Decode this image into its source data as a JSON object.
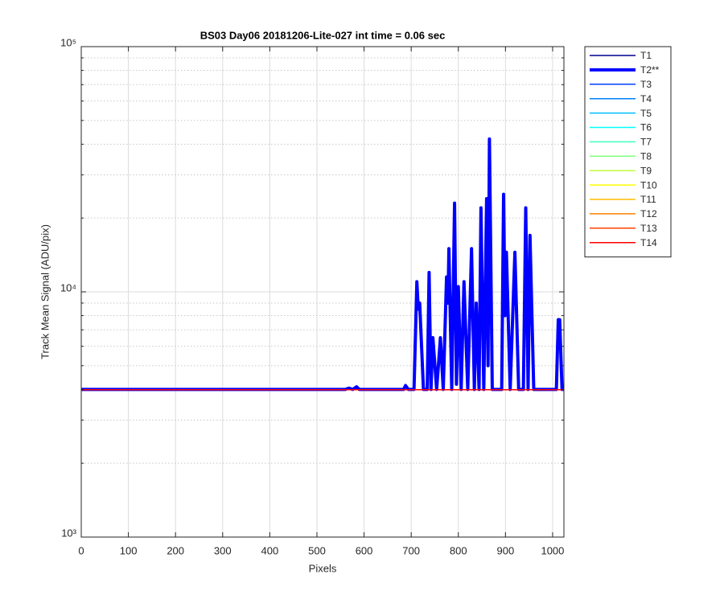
{
  "chart_data": {
    "type": "line",
    "title": "BS03 Day06 20181206-Lite-027 int time = 0.06 sec",
    "xlabel": "Pixels",
    "ylabel": "Track Mean Signal (ADU/pix)",
    "xlim": [
      0,
      1024
    ],
    "xticks": [
      0,
      100,
      200,
      300,
      400,
      500,
      600,
      700,
      800,
      900,
      1000
    ],
    "ylim": [
      1000,
      100000
    ],
    "yscale": "log",
    "yticks": [
      {
        "value": 1000,
        "label": "10³"
      },
      {
        "value": 10000,
        "label": "10⁴"
      },
      {
        "value": 100000,
        "label": "10⁵"
      }
    ],
    "yminorticks": [
      2000,
      3000,
      4000,
      5000,
      6000,
      7000,
      8000,
      9000,
      20000,
      30000,
      40000,
      50000,
      60000,
      70000,
      80000,
      90000
    ],
    "grid": true,
    "legend": "northeastoutside",
    "x": [
      0,
      560,
      568,
      576,
      584,
      590,
      684,
      688,
      694,
      706,
      712,
      715,
      718,
      726,
      734,
      738,
      742,
      746,
      754,
      762,
      768,
      775,
      778,
      780,
      786,
      792,
      796,
      800,
      806,
      812,
      820,
      828,
      834,
      838,
      844,
      848,
      854,
      860,
      863,
      866,
      872,
      892,
      896,
      899,
      902,
      910,
      920,
      928,
      938,
      943,
      948,
      952,
      960,
      1008,
      1012,
      1015,
      1020,
      1024
    ],
    "series": [
      {
        "name": "T1",
        "color": "#00008f",
        "linewidth": 1.5,
        "values": [
          3990,
          3990,
          3990,
          3990,
          3990,
          3990,
          3990,
          3990,
          3990,
          3990,
          3990,
          3990,
          3990,
          3990,
          3990,
          3990,
          3990,
          3990,
          3990,
          3990,
          3990,
          3990,
          3990,
          3990,
          3990,
          3990,
          3990,
          3990,
          3990,
          3990,
          3990,
          3990,
          3990,
          3990,
          3990,
          3990,
          3990,
          3990,
          3990,
          3990,
          3990,
          3990,
          3990,
          3990,
          3990,
          3990,
          3990,
          3990,
          3990,
          3990,
          3990,
          3990,
          3990,
          3990,
          3990,
          3990,
          3990,
          3990
        ]
      },
      {
        "name": "T2**",
        "color": "#0000ff",
        "linewidth": 4,
        "values": [
          4000,
          4000,
          4050,
          4000,
          4100,
          4000,
          4000,
          4150,
          4000,
          4000,
          11000,
          8500,
          9000,
          4000,
          4000,
          12000,
          4000,
          6500,
          4000,
          6500,
          4000,
          11500,
          9000,
          15000,
          4000,
          23000,
          4200,
          10500,
          4000,
          11000,
          4000,
          15000,
          4000,
          9000,
          4000,
          22000,
          4000,
          24000,
          5000,
          42000,
          4000,
          4000,
          25000,
          8000,
          14500,
          4000,
          14500,
          4000,
          4000,
          22000,
          4000,
          17000,
          4000,
          4000,
          7700,
          7700,
          4000,
          4000
        ]
      },
      {
        "name": "T3",
        "color": "#0040ff",
        "linewidth": 1.5,
        "values": [
          3990,
          3990,
          3990,
          3990,
          3990,
          3990,
          3990,
          3990,
          3990,
          3990,
          3990,
          3990,
          3990,
          3990,
          3990,
          3990,
          3990,
          3990,
          3990,
          3990,
          3990,
          3990,
          3990,
          3990,
          3990,
          3990,
          3990,
          3990,
          3990,
          3990,
          3990,
          3990,
          3990,
          3990,
          3990,
          3990,
          3990,
          3990,
          3990,
          3990,
          3990,
          3990,
          3990,
          3990,
          3990,
          3990,
          3990,
          3990,
          3990,
          3990,
          3990,
          3990,
          3990,
          3990,
          3990,
          3990,
          3990,
          3990
        ]
      },
      {
        "name": "T4",
        "color": "#0080ff",
        "linewidth": 1.5,
        "values": [
          3990,
          3990,
          3990,
          3990,
          3990,
          3990,
          3990,
          3990,
          3990,
          3990,
          3990,
          3990,
          3990,
          3990,
          3990,
          3990,
          3990,
          3990,
          3990,
          3990,
          3990,
          3990,
          3990,
          3990,
          3990,
          3990,
          3990,
          3990,
          3990,
          3990,
          3990,
          3990,
          3990,
          3990,
          3990,
          3990,
          3990,
          3990,
          3990,
          3990,
          3990,
          3990,
          3990,
          3990,
          3990,
          3990,
          3990,
          3990,
          3990,
          3990,
          3990,
          3990,
          3990,
          3990,
          3990,
          3990,
          3990,
          3990
        ]
      },
      {
        "name": "T5",
        "color": "#00bfff",
        "linewidth": 1.5,
        "values": [
          3990,
          3990,
          3990,
          3990,
          3990,
          3990,
          3990,
          3990,
          3990,
          3990,
          3990,
          3990,
          3990,
          3990,
          3990,
          3990,
          3990,
          3990,
          3990,
          3990,
          3990,
          3990,
          3990,
          3990,
          3990,
          3990,
          3990,
          3990,
          3990,
          3990,
          3990,
          3990,
          3990,
          3990,
          3990,
          3990,
          3990,
          3990,
          3990,
          3990,
          3990,
          3990,
          3990,
          3990,
          3990,
          3990,
          3990,
          3990,
          3990,
          3990,
          3990,
          3990,
          3990,
          3990,
          3990,
          3990,
          3990,
          3990
        ]
      },
      {
        "name": "T6",
        "color": "#00ffff",
        "linewidth": 1.5,
        "values": [
          3990,
          3990,
          3990,
          3990,
          3990,
          3990,
          3990,
          3990,
          3990,
          3990,
          3990,
          3990,
          3990,
          3990,
          3990,
          3990,
          3990,
          3990,
          3990,
          3990,
          3990,
          3990,
          3990,
          3990,
          3990,
          3990,
          3990,
          3990,
          3990,
          3990,
          3990,
          3990,
          3990,
          3990,
          3990,
          3990,
          3990,
          3990,
          3990,
          3990,
          3990,
          3990,
          3990,
          3990,
          3990,
          3990,
          3990,
          3990,
          3990,
          3990,
          3990,
          3990,
          3990,
          3990,
          3990,
          3990,
          3990,
          3990
        ]
      },
      {
        "name": "T7",
        "color": "#40ffbf",
        "linewidth": 1.5,
        "values": [
          3990,
          3990,
          3990,
          3990,
          3990,
          3990,
          3990,
          3990,
          3990,
          3990,
          3990,
          3990,
          3990,
          3990,
          3990,
          3990,
          3990,
          3990,
          3990,
          3990,
          3990,
          3990,
          3990,
          3990,
          3990,
          3990,
          3990,
          3990,
          3990,
          3990,
          3990,
          3990,
          3990,
          3990,
          3990,
          3990,
          3990,
          3990,
          3990,
          3990,
          3990,
          3990,
          3990,
          3990,
          3990,
          3990,
          3990,
          3990,
          3990,
          3990,
          3990,
          3990,
          3990,
          3990,
          3990,
          3990,
          3990,
          3990
        ]
      },
      {
        "name": "T8",
        "color": "#80ff80",
        "linewidth": 1.5,
        "values": [
          3990,
          3990,
          3990,
          3990,
          3990,
          3990,
          3990,
          3990,
          3990,
          3990,
          3990,
          3990,
          3990,
          3990,
          3990,
          3990,
          3990,
          3990,
          3990,
          3990,
          3990,
          3990,
          3990,
          3990,
          3990,
          3990,
          3990,
          3990,
          3990,
          3990,
          3990,
          3990,
          3990,
          3990,
          3990,
          3990,
          3990,
          3990,
          3990,
          3990,
          3990,
          3990,
          3990,
          3990,
          3990,
          3990,
          3990,
          3990,
          3990,
          3990,
          3990,
          3990,
          3990,
          3990,
          3990,
          3990,
          3990,
          3990
        ]
      },
      {
        "name": "T9",
        "color": "#bfff40",
        "linewidth": 1.5,
        "values": [
          3990,
          3990,
          3990,
          3990,
          3990,
          3990,
          3990,
          3990,
          3990,
          3990,
          3990,
          3990,
          3990,
          3990,
          3990,
          3990,
          3990,
          3990,
          3990,
          3990,
          3990,
          3990,
          3990,
          3990,
          3990,
          3990,
          3990,
          3990,
          3990,
          3990,
          3990,
          3990,
          3990,
          3990,
          3990,
          3990,
          3990,
          3990,
          3990,
          3990,
          3990,
          3990,
          3990,
          3990,
          3990,
          3990,
          3990,
          3990,
          3990,
          3990,
          3990,
          3990,
          3990,
          3990,
          3990,
          3990,
          3990,
          3990
        ]
      },
      {
        "name": "T10",
        "color": "#ffff00",
        "linewidth": 1.5,
        "values": [
          3990,
          3990,
          3990,
          3990,
          3990,
          3990,
          3990,
          3990,
          3990,
          3990,
          3990,
          3990,
          3990,
          3990,
          3990,
          3990,
          3990,
          3990,
          3990,
          3990,
          3990,
          3990,
          3990,
          3990,
          3990,
          3990,
          3990,
          3990,
          3990,
          3990,
          3990,
          3990,
          3990,
          3990,
          3990,
          3990,
          3990,
          3990,
          3990,
          3990,
          3990,
          3990,
          3990,
          3990,
          3990,
          3990,
          3990,
          3990,
          3990,
          3990,
          3990,
          3990,
          3990,
          3990,
          3990,
          3990,
          3990,
          3990
        ]
      },
      {
        "name": "T11",
        "color": "#ffbf00",
        "linewidth": 1.5,
        "values": [
          3990,
          3990,
          3990,
          3990,
          3990,
          3990,
          3990,
          3990,
          3990,
          3990,
          3990,
          3990,
          3990,
          3990,
          3990,
          3990,
          3990,
          3990,
          3990,
          3990,
          3990,
          3990,
          3990,
          3990,
          3990,
          3990,
          3990,
          3990,
          3990,
          3990,
          3990,
          3990,
          3990,
          3990,
          3990,
          3990,
          3990,
          3990,
          3990,
          3990,
          3990,
          3990,
          3990,
          3990,
          3990,
          3990,
          3990,
          3990,
          3990,
          3990,
          3990,
          3990,
          3990,
          3990,
          3990,
          3990,
          3990,
          3990
        ]
      },
      {
        "name": "T12",
        "color": "#ff8000",
        "linewidth": 1.5,
        "values": [
          3990,
          3990,
          3990,
          3990,
          3990,
          3990,
          3990,
          3990,
          3990,
          3990,
          3990,
          3990,
          3990,
          3990,
          3990,
          3990,
          3990,
          3990,
          3990,
          3990,
          3990,
          3990,
          3990,
          3990,
          3990,
          3990,
          3990,
          3990,
          3990,
          3990,
          3990,
          3990,
          3990,
          3990,
          3990,
          3990,
          3990,
          3990,
          3990,
          3990,
          3990,
          3990,
          3990,
          3990,
          3990,
          3990,
          3990,
          3990,
          3990,
          3990,
          3990,
          3990,
          3990,
          3990,
          3990,
          3990,
          3990,
          3990
        ]
      },
      {
        "name": "T13",
        "color": "#ff4000",
        "linewidth": 1.5,
        "values": [
          3990,
          3990,
          3990,
          3990,
          3990,
          3990,
          3990,
          3990,
          3990,
          3990,
          3990,
          3990,
          3990,
          3990,
          3990,
          3990,
          3990,
          3990,
          3990,
          3990,
          3990,
          3990,
          3990,
          3990,
          3990,
          3990,
          3990,
          3990,
          3990,
          3990,
          3990,
          3990,
          3990,
          3990,
          3990,
          3990,
          3990,
          3990,
          3990,
          3990,
          3990,
          3990,
          3990,
          3990,
          3990,
          3990,
          3990,
          3990,
          3990,
          3990,
          3990,
          3990,
          3990,
          3990,
          3990,
          3990,
          3990,
          3990
        ]
      },
      {
        "name": "T14",
        "color": "#ff0000",
        "linewidth": 1.5,
        "values": [
          3990,
          3990,
          3990,
          3990,
          3990,
          3990,
          3990,
          3990,
          3990,
          3990,
          3990,
          3990,
          3990,
          3990,
          3990,
          3990,
          3990,
          3990,
          3990,
          3990,
          3990,
          3990,
          3990,
          3990,
          3990,
          3990,
          3990,
          3990,
          3990,
          3990,
          3990,
          3990,
          3990,
          3990,
          3990,
          3990,
          3990,
          3990,
          3990,
          3990,
          3990,
          3990,
          3990,
          3990,
          3990,
          3990,
          3990,
          3990,
          3990,
          3990,
          3990,
          3990,
          3990,
          3990,
          3990,
          3990,
          3990,
          3990
        ]
      }
    ]
  }
}
